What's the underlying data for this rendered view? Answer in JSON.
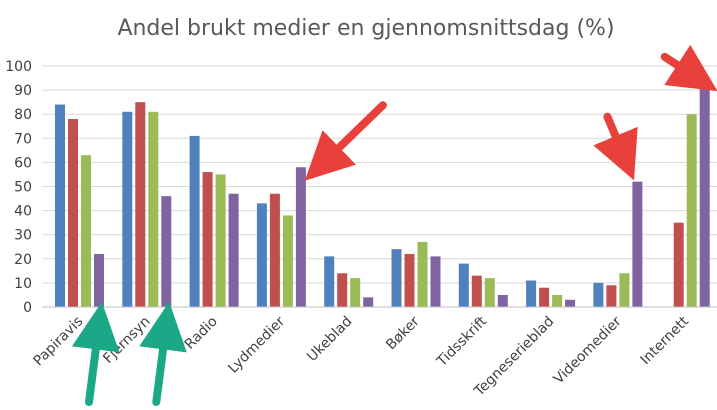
{
  "chart_data": {
    "type": "bar",
    "title": "Andel brukt medier en gjennomsnittsdag (%)",
    "xlabel": "",
    "ylabel": "",
    "ylim": [
      0,
      100
    ],
    "yticks": [
      0,
      10,
      20,
      30,
      40,
      50,
      60,
      70,
      80,
      90,
      100
    ],
    "grid": true,
    "categories": [
      "Papiravis",
      "Fjernsyn",
      "Radio",
      "Lydmedier",
      "Ukeblad",
      "Bøker",
      "Tidsskrift",
      "Tegneserieblad",
      "Videomedier",
      "Internett"
    ],
    "series": [
      {
        "color": "#4f81bd",
        "values": [
          84,
          81,
          71,
          43,
          21,
          24,
          18,
          11,
          10,
          null
        ]
      },
      {
        "color": "#c0504d",
        "values": [
          78,
          85,
          56,
          47,
          14,
          22,
          13,
          8,
          9,
          35
        ]
      },
      {
        "color": "#9bbb59",
        "values": [
          63,
          81,
          55,
          38,
          12,
          27,
          12,
          5,
          14,
          80
        ]
      },
      {
        "color": "#8064a2",
        "values": [
          22,
          46,
          47,
          58,
          4,
          21,
          5,
          3,
          52,
          93
        ]
      }
    ],
    "annotations": [
      {
        "type": "arrow",
        "color": "#e8403a",
        "target_category": "Lydmedier",
        "target_value": 58
      },
      {
        "type": "arrow",
        "color": "#e8403a",
        "target_category": "Videomedier",
        "target_value": 52
      },
      {
        "type": "arrow",
        "color": "#e8403a",
        "target_category": "Internett",
        "target_value": 93
      },
      {
        "type": "arrow",
        "color": "#1aa886",
        "target_category": "Papiravis",
        "target_value": 0
      },
      {
        "type": "arrow",
        "color": "#1aa886",
        "target_category": "Fjernsyn",
        "target_value": 0
      }
    ]
  }
}
